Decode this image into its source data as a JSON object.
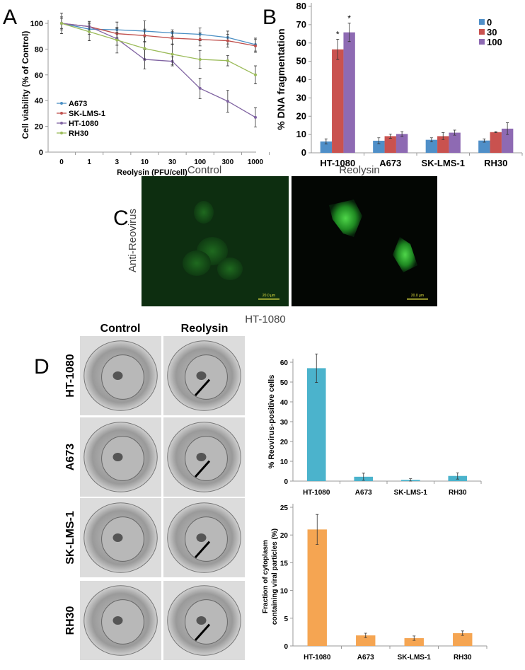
{
  "panels": {
    "a": "A",
    "b": "B",
    "c": "C",
    "d": "D"
  },
  "chart_data": [
    {
      "id": "A",
      "type": "line",
      "xlabel": "Reolysin (PFU/cell)",
      "ylabel": "Cell viability (% of Control)",
      "categories": [
        "0",
        "1",
        "3",
        "10",
        "30",
        "100",
        "300",
        "1000"
      ],
      "ylim": [
        0,
        100
      ],
      "yticks": [
        0,
        20,
        40,
        60,
        80,
        100
      ],
      "legend_position": "bottom-left",
      "grid": false,
      "series": [
        {
          "name": "A673",
          "color": "#4a8fc4",
          "values": [
            100,
            95.5,
            95,
            94,
            92.5,
            91.5,
            89,
            83.5
          ],
          "err": [
            4,
            4,
            6,
            8,
            2.5,
            5,
            5,
            5
          ]
        },
        {
          "name": "SK-LMS-1",
          "color": "#c0504d",
          "values": [
            100,
            97.5,
            92,
            90.5,
            88.5,
            87.5,
            86.5,
            82.5
          ],
          "err": [
            4,
            4,
            4,
            5,
            5,
            5,
            5,
            5
          ]
        },
        {
          "name": "HT-1080",
          "color": "#8064a2",
          "values": [
            100,
            97.5,
            88,
            72,
            70.5,
            49.5,
            39.5,
            27
          ],
          "err": [
            5,
            4,
            5,
            7.5,
            3.5,
            8,
            8.5,
            7.5
          ]
        },
        {
          "name": "RH30",
          "color": "#9bbb59",
          "values": [
            100,
            93.5,
            87,
            80.5,
            76,
            72,
            71,
            60
          ],
          "err": [
            8,
            7,
            10,
            9,
            8,
            7,
            4,
            7
          ]
        }
      ]
    },
    {
      "id": "B",
      "type": "bar",
      "xlabel": "",
      "ylabel": "% DNA fragmentation",
      "categories": [
        "HT-1080",
        "A673",
        "SK-LMS-1",
        "RH30"
      ],
      "ylim": [
        0,
        80
      ],
      "yticks": [
        0,
        10,
        20,
        30,
        40,
        50,
        60,
        70,
        80
      ],
      "legend_position": "top-right",
      "grid": false,
      "series": [
        {
          "name": "0",
          "color": "#4f8fc8",
          "values": [
            6.2,
            6.6,
            7.1,
            6.7
          ],
          "err": [
            1.4,
            1.6,
            1.1,
            0.9
          ]
        },
        {
          "name": "30",
          "color": "#c9524f",
          "values": [
            56.5,
            9.1,
            9.1,
            11.3
          ],
          "err": [
            5.5,
            1.2,
            1.9,
            0.3
          ]
        },
        {
          "name": "100",
          "color": "#8e6ab3",
          "values": [
            65.8,
            10.3,
            11.0,
            13.2
          ],
          "err": [
            5.0,
            1.3,
            1.4,
            3.2
          ]
        }
      ],
      "annotations": [
        {
          "category": "HT-1080",
          "series": "30",
          "text": "*"
        },
        {
          "category": "HT-1080",
          "series": "100",
          "text": "*"
        }
      ]
    },
    {
      "id": "D1",
      "type": "bar",
      "xlabel": "",
      "ylabel": "% Reovirus-positive cells",
      "categories": [
        "HT-1080",
        "A673",
        "SK-LMS-1",
        "RH30"
      ],
      "ylim": [
        0,
        60
      ],
      "yticks": [
        0,
        10,
        20,
        30,
        40,
        50,
        60
      ],
      "grid": false,
      "series": [
        {
          "color": "#4bb3cc",
          "values": [
            57,
            2.2,
            0.6,
            2.6
          ],
          "err": [
            7.2,
            1.8,
            0.6,
            1.6
          ]
        }
      ]
    },
    {
      "id": "D2",
      "type": "bar",
      "xlabel": "",
      "ylabel": "Fraction of cytoplasm containing viral particles (%)",
      "ylabel_lines": [
        "Fraction of cytoplasm",
        "containing viral particles (%)"
      ],
      "categories": [
        "HT-1080",
        "A673",
        "SK-LMS-1",
        "RH30"
      ],
      "ylim": [
        0,
        25
      ],
      "yticks": [
        0,
        5,
        10,
        15,
        20,
        25
      ],
      "grid": false,
      "series": [
        {
          "color": "#f5a552",
          "values": [
            21,
            1.9,
            1.4,
            2.3
          ],
          "err": [
            2.7,
            0.4,
            0.4,
            0.4
          ]
        }
      ]
    }
  ],
  "panel_c": {
    "columns": [
      "Control",
      "Reolysin"
    ],
    "row_label": "Anti-Reovirus",
    "cell_line": "HT-1080",
    "scale_bar": "20.0 µm"
  },
  "panel_d": {
    "columns": [
      "Control",
      "Reolysin"
    ],
    "rows": [
      "HT-1080",
      "A673",
      "SK-LMS-1",
      "RH30"
    ]
  }
}
